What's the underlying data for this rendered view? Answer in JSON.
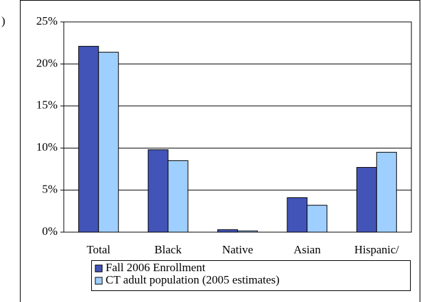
{
  "chart_data": {
    "type": "bar",
    "annotation": ")",
    "categories": [
      "Total",
      "Black",
      "Native",
      "Asian",
      "Hispanic/"
    ],
    "series": [
      {
        "name": "Fall 2006 Enrollment",
        "color": "#4354b8",
        "values": [
          22.1,
          9.8,
          0.3,
          4.1,
          7.7
        ]
      },
      {
        "name": "CT adult population (2005 estimates)",
        "color": "#9fcfff",
        "values": [
          21.4,
          8.5,
          0.15,
          3.2,
          9.5
        ]
      }
    ],
    "ylim": [
      0,
      25
    ],
    "yticks": [
      {
        "value": 0,
        "label": "0%"
      },
      {
        "value": 5,
        "label": "5%"
      },
      {
        "value": 10,
        "label": "10%"
      },
      {
        "value": 15,
        "label": "15%"
      },
      {
        "value": 20,
        "label": "20%"
      },
      {
        "value": 25,
        "label": "25%"
      }
    ],
    "grid": true,
    "legend": "bottom"
  }
}
